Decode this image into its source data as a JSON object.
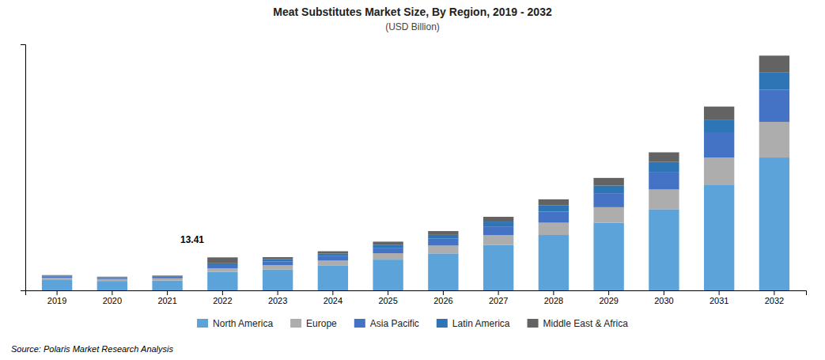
{
  "chart_data": {
    "type": "bar",
    "stacked": true,
    "title": "Meat Substitutes Market Size, By Region, 2019 - 2032",
    "subtitle": "(USD Billion)",
    "categories": [
      "2019",
      "2020",
      "2021",
      "2022",
      "2023",
      "2024",
      "2025",
      "2026",
      "2027",
      "2028",
      "2029",
      "2030",
      "2031",
      "2032"
    ],
    "series": [
      {
        "name": "North America",
        "color": "#5BA3D9",
        "values": [
          4.2,
          3.8,
          4.0,
          7.5,
          8.5,
          10.0,
          12.5,
          15.0,
          18.5,
          22.5,
          27.5,
          33.0,
          43.0,
          54.0
        ]
      },
      {
        "name": "Europe",
        "color": "#ADADAD",
        "values": [
          0.9,
          0.8,
          0.9,
          1.5,
          1.8,
          2.1,
          2.6,
          3.2,
          4.0,
          5.0,
          6.3,
          8.0,
          11.0,
          14.5
        ]
      },
      {
        "name": "Asia Pacific",
        "color": "#4472C4",
        "values": [
          0.6,
          0.5,
          0.6,
          1.3,
          1.5,
          1.8,
          2.2,
          2.8,
          3.5,
          4.5,
          5.7,
          7.2,
          10.0,
          13.0
        ]
      },
      {
        "name": "Latin America",
        "color": "#2E75B6",
        "values": [
          0.25,
          0.22,
          0.25,
          0.7,
          0.85,
          1.0,
          1.25,
          1.55,
          1.95,
          2.5,
          3.1,
          4.0,
          5.4,
          7.0
        ]
      },
      {
        "name": "Middle East & Africa",
        "color": "#636363",
        "values": [
          0.25,
          0.22,
          0.25,
          2.41,
          0.85,
          1.0,
          1.25,
          1.55,
          1.95,
          2.5,
          3.1,
          3.9,
          5.3,
          6.9
        ]
      }
    ],
    "annotations": [
      {
        "category": "2022",
        "text": "13.41"
      }
    ],
    "source": "Source: Polaris  Market Research Analysis",
    "ylim": [
      0,
      100
    ],
    "yticks": [],
    "tick_labels": "x",
    "grid": false,
    "legend": "bottom"
  }
}
